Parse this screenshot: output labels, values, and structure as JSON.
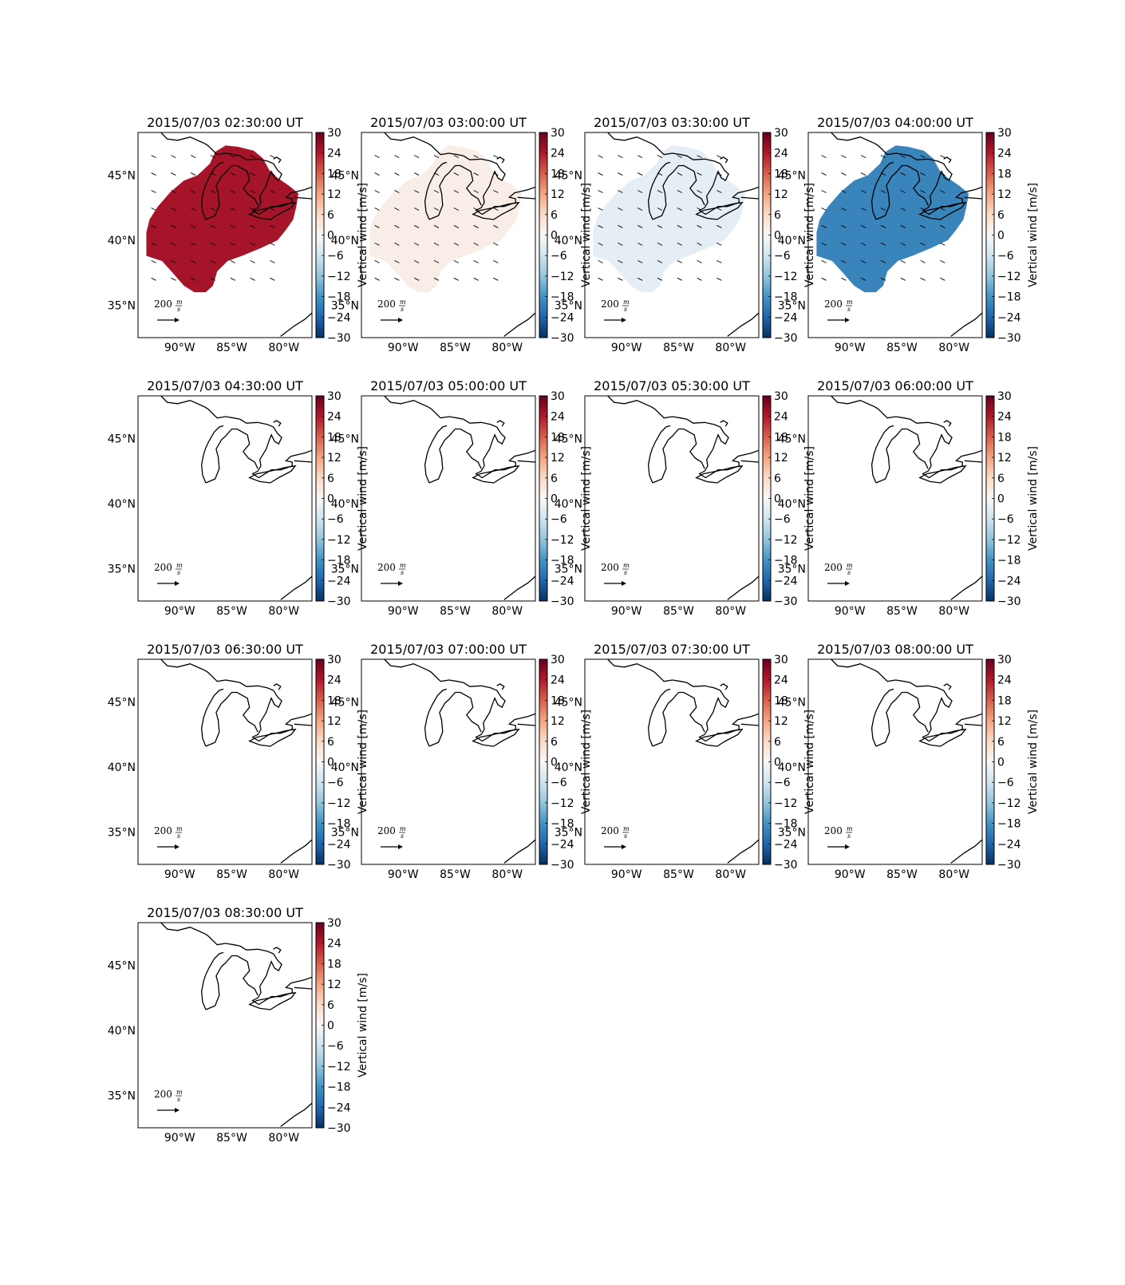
{
  "chart_data": {
    "type": "heatmap",
    "colorbar": {
      "label": "Vertical wind [m/s]",
      "range": [
        -30,
        30
      ],
      "ticks": [
        "30",
        "24",
        "18",
        "12",
        "6",
        "0",
        "−6",
        "−12",
        "−18",
        "−24",
        "−30"
      ],
      "colormap": [
        "#053061",
        "#2166ac",
        "#4393c3",
        "#92c5de",
        "#d1e5f0",
        "#f7f7f7",
        "#fddbc7",
        "#f4a582",
        "#d6604d",
        "#b2182b",
        "#67001f"
      ]
    },
    "map": {
      "lon_range": [
        -94,
        -77.3
      ],
      "lat_range": [
        32.5,
        48.3
      ],
      "lat_ticks": [
        "45°N",
        "40°N",
        "35°N"
      ],
      "lat_values": [
        45,
        40,
        35
      ],
      "lon_ticks": [
        "90°W",
        "85°W",
        "80°W"
      ],
      "lon_values": [
        -90,
        -85,
        -80
      ]
    },
    "quiver_key": {
      "value": "200",
      "unit_num": "m",
      "unit_den": "s"
    },
    "panels": [
      {
        "title": "2015/07/03 02:30:00 UT",
        "vertical_wind": 25
      },
      {
        "title": "2015/07/03 03:00:00 UT",
        "vertical_wind": 2
      },
      {
        "title": "2015/07/03 03:30:00 UT",
        "vertical_wind": -3
      },
      {
        "title": "2015/07/03 04:00:00 UT",
        "vertical_wind": -20
      },
      {
        "title": "2015/07/03 04:30:00 UT",
        "vertical_wind": null
      },
      {
        "title": "2015/07/03 05:00:00 UT",
        "vertical_wind": null
      },
      {
        "title": "2015/07/03 05:30:00 UT",
        "vertical_wind": null
      },
      {
        "title": "2015/07/03 06:00:00 UT",
        "vertical_wind": null
      },
      {
        "title": "2015/07/03 06:30:00 UT",
        "vertical_wind": null
      },
      {
        "title": "2015/07/03 07:00:00 UT",
        "vertical_wind": null
      },
      {
        "title": "2015/07/03 07:30:00 UT",
        "vertical_wind": null
      },
      {
        "title": "2015/07/03 08:00:00 UT",
        "vertical_wind": null
      },
      {
        "title": "2015/07/03 08:30:00 UT",
        "vertical_wind": null
      }
    ]
  }
}
